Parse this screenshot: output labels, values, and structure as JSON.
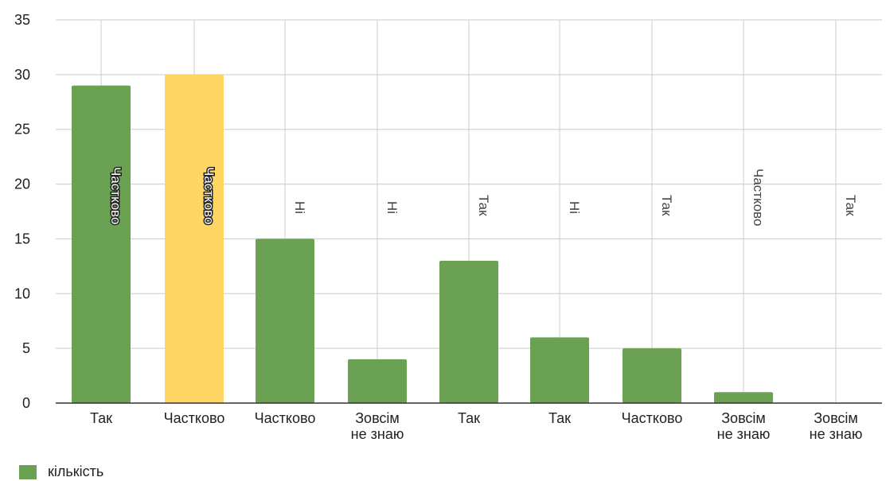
{
  "chart_data": {
    "type": "bar",
    "categories": [
      [
        "Так"
      ],
      [
        "Частково"
      ],
      [
        "Частково"
      ],
      [
        "Зовсім",
        "не знаю"
      ],
      [
        "Так"
      ],
      [
        "Так"
      ],
      [
        "Частково"
      ],
      [
        "Зовсім",
        "не знаю"
      ],
      [
        "Зовсім",
        "не знаю"
      ]
    ],
    "series": [
      {
        "name": "кількість",
        "values": [
          29,
          30,
          15,
          4,
          13,
          6,
          5,
          1,
          0
        ]
      }
    ],
    "annotations": [
      "Частково",
      "Частково",
      "Ні",
      "Ні",
      "Так",
      "Ні",
      "Так",
      "Частково",
      "Так"
    ],
    "bar_colors": [
      "#6aa152",
      "#fdd663",
      "#6aa152",
      "#6aa152",
      "#6aa152",
      "#6aa152",
      "#6aa152",
      "#6aa152",
      "#6aa152"
    ],
    "ylim": [
      0,
      35
    ],
    "yticks": [
      0,
      5,
      10,
      15,
      20,
      25,
      30,
      35
    ],
    "grid": true,
    "legend_position": "bottom-left"
  },
  "colors": {
    "primary": "#6aa152",
    "highlight": "#fdd663",
    "grid": "#cccccc",
    "axis": "#333333"
  }
}
